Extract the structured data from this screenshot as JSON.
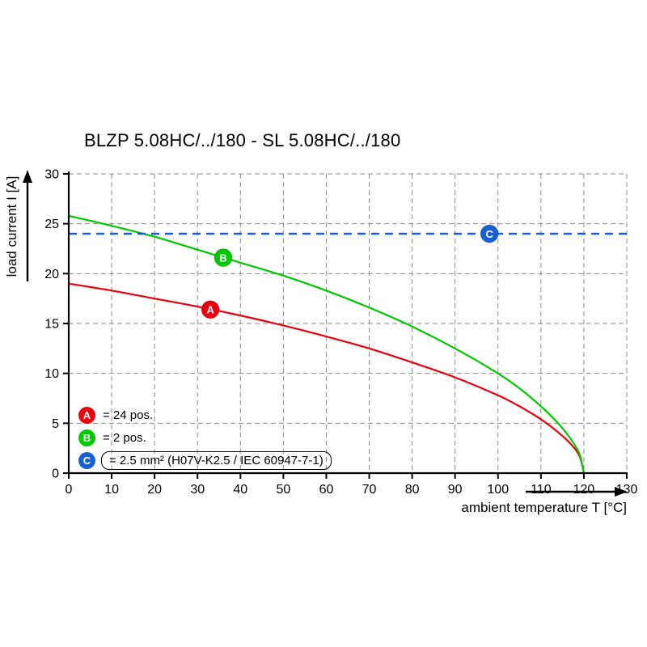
{
  "chart_data": {
    "type": "line",
    "title": "BLZP 5.08HC/../180 - SL 5.08HC/../180",
    "xlabel": "ambient temperature T [°C]",
    "ylabel": "load current I [A]",
    "xlim": [
      0,
      130
    ],
    "ylim": [
      0,
      30
    ],
    "x_ticks": [
      0,
      10,
      20,
      30,
      40,
      50,
      60,
      70,
      80,
      90,
      100,
      110,
      120,
      130
    ],
    "y_ticks": [
      0,
      5,
      10,
      15,
      20,
      25,
      30
    ],
    "grid": {
      "dashed": true,
      "x_step": 10,
      "y_step": 5
    },
    "legend_position": "bottom-left-inside",
    "series": [
      {
        "name": "A",
        "label": "= 24 pos.",
        "color": "#e8000e",
        "type": "curve",
        "points": [
          [
            0,
            19.0
          ],
          [
            10,
            18.3
          ],
          [
            20,
            17.5
          ],
          [
            30,
            16.7
          ],
          [
            40,
            15.8
          ],
          [
            50,
            14.8
          ],
          [
            60,
            13.7
          ],
          [
            70,
            12.5
          ],
          [
            80,
            11.1
          ],
          [
            90,
            9.6
          ],
          [
            100,
            7.8
          ],
          [
            105,
            6.7
          ],
          [
            110,
            5.4
          ],
          [
            114,
            4.1
          ],
          [
            117,
            2.9
          ],
          [
            119,
            1.7
          ],
          [
            120,
            0
          ]
        ]
      },
      {
        "name": "B",
        "label": "= 2 pos.",
        "color": "#00c800",
        "type": "curve",
        "points": [
          [
            0,
            25.8
          ],
          [
            10,
            24.8
          ],
          [
            20,
            23.7
          ],
          [
            30,
            22.4
          ],
          [
            40,
            21.1
          ],
          [
            50,
            19.8
          ],
          [
            60,
            18.3
          ],
          [
            70,
            16.6
          ],
          [
            80,
            14.7
          ],
          [
            90,
            12.5
          ],
          [
            100,
            10.0
          ],
          [
            105,
            8.5
          ],
          [
            110,
            6.7
          ],
          [
            114,
            5.0
          ],
          [
            117,
            3.4
          ],
          [
            119,
            1.9
          ],
          [
            120,
            0
          ]
        ]
      },
      {
        "name": "C",
        "label": "= 2.5 mm² (H07V-K2.5 / IEC 60947-7-1)",
        "color": "#1760d2",
        "type": "threshold",
        "value": 24
      }
    ],
    "markers": [
      {
        "series": "A",
        "x": 33,
        "y": 16.4
      },
      {
        "series": "B",
        "x": 36,
        "y": 21.6
      },
      {
        "series": "C",
        "x": 98,
        "y": 24
      }
    ]
  }
}
